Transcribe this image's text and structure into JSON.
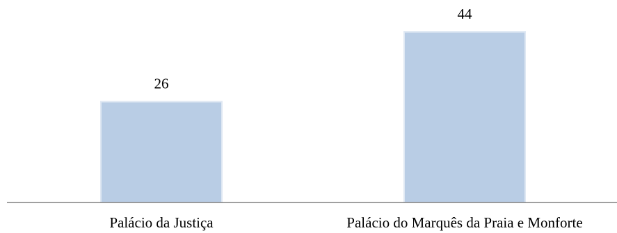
{
  "chart_data": {
    "type": "bar",
    "categories": [
      "Palácio da Justiça",
      "Palácio do Marquês da Praia e Monforte"
    ],
    "values": [
      26,
      44
    ],
    "title": "",
    "xlabel": "",
    "ylabel": "",
    "ylim": [
      0,
      44
    ],
    "grid": false,
    "data_labels": true,
    "colors": {
      "bar": "#b9cde5",
      "bar_edge": "#dfe8f3",
      "axis": "#808080",
      "text": "#000000"
    }
  }
}
